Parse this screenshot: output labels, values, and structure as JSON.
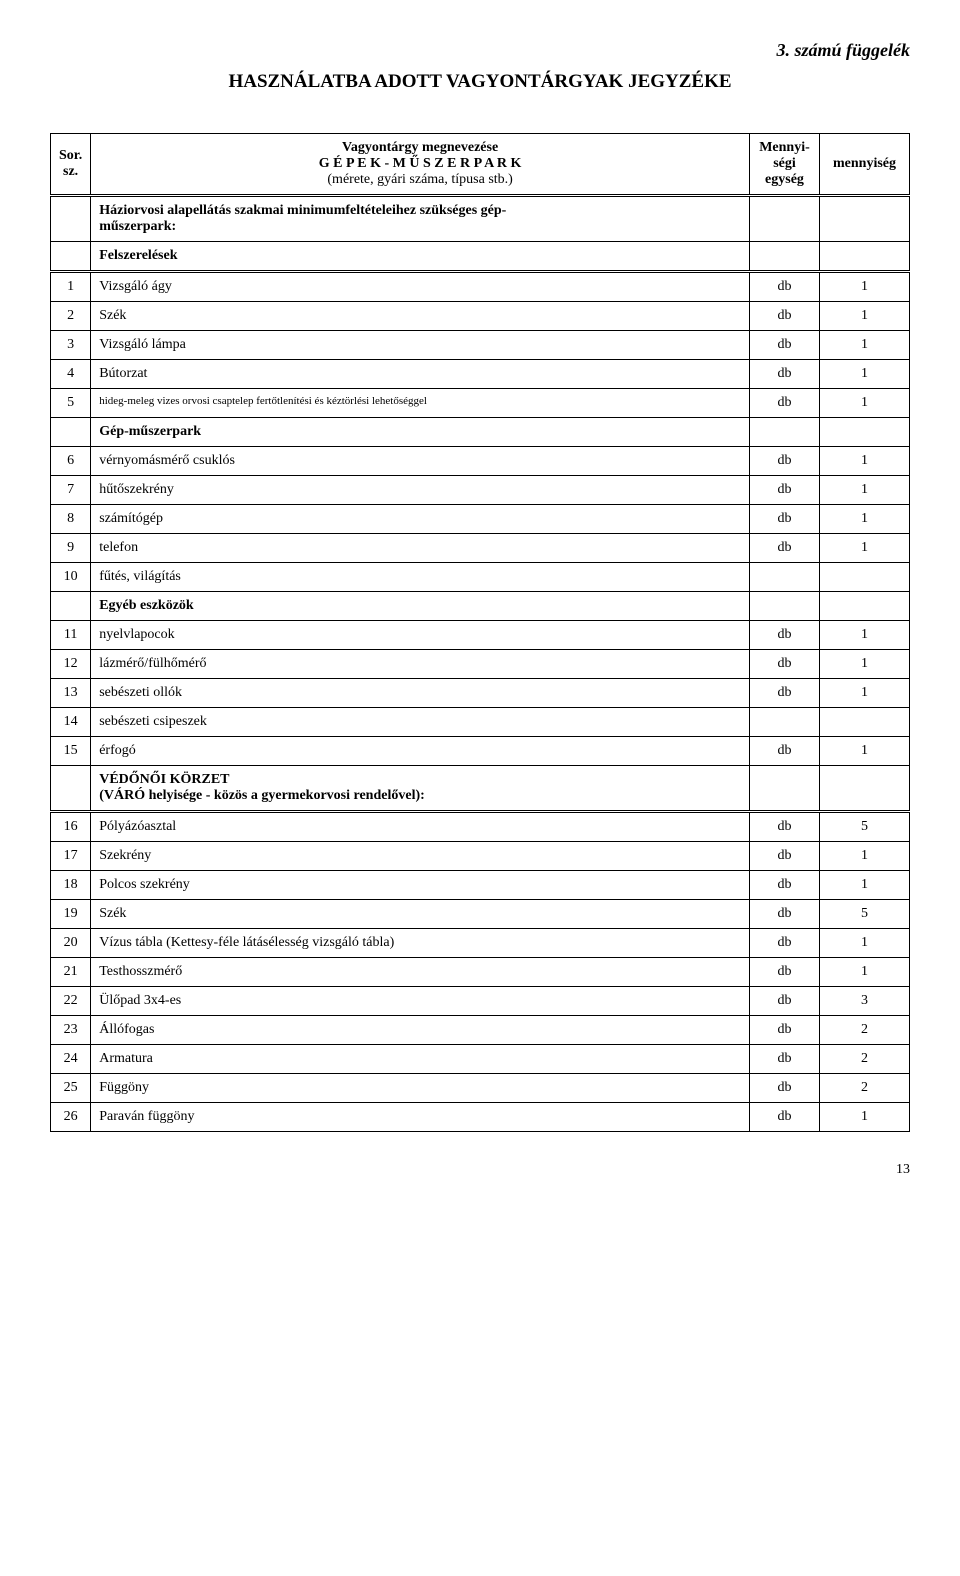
{
  "appendix": "3. számú függelék",
  "title": "HASZNÁLATBA ADOTT VAGYONTÁRGYAK JEGYZÉKE",
  "headers": {
    "sor": "Sor.\nsz.",
    "name_line1": "Vagyontárgy megnevezése",
    "name_line2": "G É P E K - M Ű S Z E R P A R K",
    "name_line3": "(mérete, gyári száma, típusa stb.)",
    "unit": "Mennyi-\nségi\negység",
    "qty": "mennyiség"
  },
  "section1": "Háziorvosi alapellátás szakmai minimumfeltételeihez szükséges gép-\nműszerpark:",
  "felszerelesek": "Felszerelések",
  "rows1": [
    {
      "n": "1",
      "name": "Vizsgáló ágy",
      "u": "db",
      "q": "1"
    },
    {
      "n": "2",
      "name": "Szék",
      "u": "db",
      "q": "1"
    },
    {
      "n": "3",
      "name": "Vizsgáló lámpa",
      "u": "db",
      "q": "1"
    },
    {
      "n": "4",
      "name": "Bútorzat",
      "u": "db",
      "q": "1"
    },
    {
      "n": "5",
      "name": "hideg-meleg vizes orvosi csaptelep fertőtlenítési és kéztörlési lehetőséggel",
      "u": "db",
      "q": "1",
      "small": true
    }
  ],
  "gep": "Gép-műszerpark",
  "rows2": [
    {
      "n": "6",
      "name": "vérnyomásmérő csuklós",
      "u": "db",
      "q": "1"
    },
    {
      "n": "7",
      "name": "hűtőszekrény",
      "u": "db",
      "q": "1"
    },
    {
      "n": "8",
      "name": "számítógép",
      "u": "db",
      "q": "1"
    },
    {
      "n": "9",
      "name": "telefon",
      "u": "db",
      "q": "1"
    },
    {
      "n": "10",
      "name": "fűtés, világítás",
      "u": "",
      "q": ""
    }
  ],
  "egyeb": "Egyéb eszközök",
  "rows3": [
    {
      "n": "11",
      "name": "nyelvlapocok",
      "u": "db",
      "q": "1"
    },
    {
      "n": "12",
      "name": "lázmérő/fülhőmérő",
      "u": "db",
      "q": "1"
    },
    {
      "n": "13",
      "name": "sebészeti ollók",
      "u": "db",
      "q": "1"
    },
    {
      "n": "14",
      "name": "sebészeti csipeszek",
      "u": "",
      "q": ""
    },
    {
      "n": "15",
      "name": "érfogó",
      "u": "db",
      "q": "1"
    }
  ],
  "vedono_line1": "VÉDŐNŐI KÖRZET",
  "vedono_line2": "(VÁRÓ helyisége - közös a gyermekorvosi rendelővel):",
  "rows4": [
    {
      "n": "16",
      "name": "Pólyázóasztal",
      "u": "db",
      "q": "5"
    },
    {
      "n": "17",
      "name": "Szekrény",
      "u": "db",
      "q": "1"
    },
    {
      "n": "18",
      "name": "Polcos szekrény",
      "u": "db",
      "q": "1"
    },
    {
      "n": "19",
      "name": "Szék",
      "u": "db",
      "q": "5"
    },
    {
      "n": "20",
      "name": "Vízus tábla (Kettesy-féle látásélesség vizsgáló tábla)",
      "u": "db",
      "q": "1"
    },
    {
      "n": "21",
      "name": "Testhosszmérő",
      "u": "db",
      "q": "1"
    },
    {
      "n": "22",
      "name": "Ülőpad 3x4-es",
      "u": "db",
      "q": "3"
    },
    {
      "n": "23",
      "name": "Állófogas",
      "u": "db",
      "q": "2"
    },
    {
      "n": "24",
      "name": "Armatura",
      "u": "db",
      "q": "2"
    },
    {
      "n": "25",
      "name": "Függöny",
      "u": "db",
      "q": "2"
    },
    {
      "n": "26",
      "name": "Paraván függöny",
      "u": "db",
      "q": "1"
    }
  ],
  "pagenum": "13"
}
